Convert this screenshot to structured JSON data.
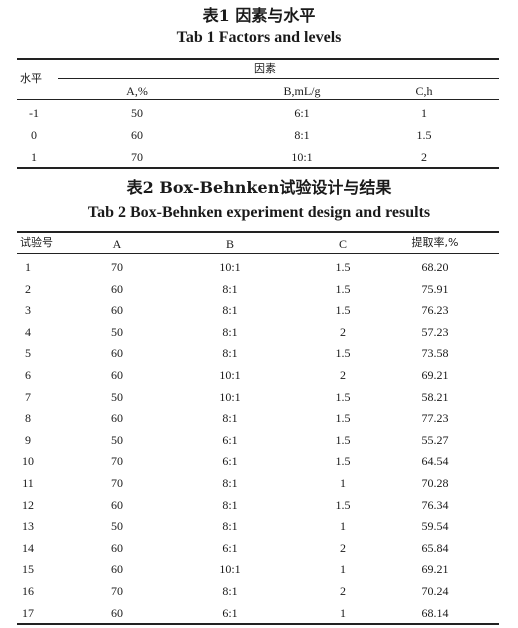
{
  "table1": {
    "caption_cn": "表1   因素与水平",
    "caption_en": "Tab 1    Factors and levels",
    "row_header": "水平",
    "group_header": "因素",
    "columns": [
      "A,%",
      "B,mL/g",
      "C,h"
    ],
    "rows": [
      {
        "level": "-1",
        "values": [
          "50",
          "6:1",
          "1"
        ]
      },
      {
        "level": "0",
        "values": [
          "60",
          "8:1",
          "1.5"
        ]
      },
      {
        "level": "1",
        "values": [
          "70",
          "10:1",
          "2"
        ]
      }
    ]
  },
  "table2": {
    "caption_cn": "表2   Box-Behnken试验设计与结果",
    "caption_en": "Tab 2   Box-Behnken experiment design and results",
    "columns": [
      "试验号",
      "A",
      "B",
      "C",
      "提取率,%"
    ],
    "rows": [
      [
        "1",
        "70",
        "10:1",
        "1.5",
        "68.20"
      ],
      [
        "2",
        "60",
        "8:1",
        "1.5",
        "75.91"
      ],
      [
        "3",
        "60",
        "8:1",
        "1.5",
        "76.23"
      ],
      [
        "4",
        "50",
        "8:1",
        "2",
        "57.23"
      ],
      [
        "5",
        "60",
        "8:1",
        "1.5",
        "73.58"
      ],
      [
        "6",
        "60",
        "10:1",
        "2",
        "69.21"
      ],
      [
        "7",
        "50",
        "10:1",
        "1.5",
        "58.21"
      ],
      [
        "8",
        "60",
        "8:1",
        "1.5",
        "77.23"
      ],
      [
        "9",
        "50",
        "6:1",
        "1.5",
        "55.27"
      ],
      [
        "10",
        "70",
        "6:1",
        "1.5",
        "64.54"
      ],
      [
        "11",
        "70",
        "8:1",
        "1",
        "70.28"
      ],
      [
        "12",
        "60",
        "8:1",
        "1.5",
        "76.34"
      ],
      [
        "13",
        "50",
        "8:1",
        "1",
        "59.54"
      ],
      [
        "14",
        "60",
        "6:1",
        "2",
        "65.84"
      ],
      [
        "15",
        "60",
        "10:1",
        "1",
        "69.21"
      ],
      [
        "16",
        "70",
        "8:1",
        "2",
        "70.24"
      ],
      [
        "17",
        "60",
        "6:1",
        "1",
        "68.14"
      ]
    ]
  }
}
